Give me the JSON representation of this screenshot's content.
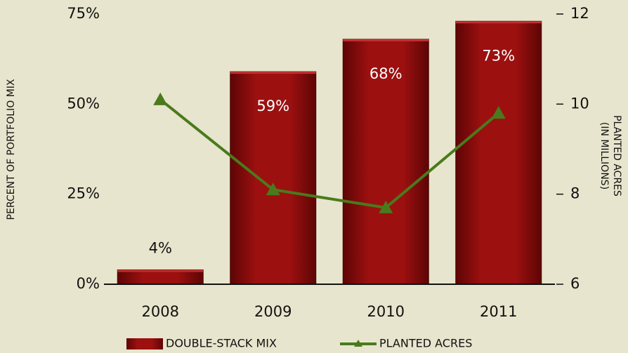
{
  "chart_data": {
    "type": "bar",
    "categories": [
      "2008",
      "2009",
      "2010",
      "2011"
    ],
    "y_label": "PERCENT OF PORTFOLIO MIX",
    "y2_label": [
      "PLANTED ACRES",
      "(IN MILLIONS)"
    ],
    "ylim": [
      0,
      75
    ],
    "yticks": [
      {
        "value": 0,
        "label": "0%"
      },
      {
        "value": 25,
        "label": "25%"
      },
      {
        "value": 50,
        "label": "50%"
      },
      {
        "value": 75,
        "label": "75%"
      }
    ],
    "y2lim": [
      6,
      12
    ],
    "y2ticks": [
      6,
      8,
      10,
      12
    ],
    "series": [
      {
        "name": "DOUBLE-STACK MIX",
        "type": "bar",
        "color": "#8b0b0b",
        "values": [
          4,
          59,
          68,
          73
        ],
        "value_labels": [
          "4%",
          "59%",
          "68%",
          "73%"
        ]
      },
      {
        "name": "PLANTED ACRES",
        "type": "line",
        "axis": "y2",
        "color": "#4a7a1c",
        "values": [
          10.1,
          8.1,
          7.7,
          9.8
        ]
      }
    ],
    "legend": "bottom"
  }
}
